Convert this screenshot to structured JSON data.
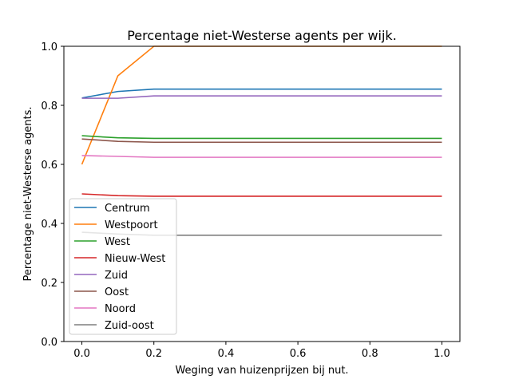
{
  "chart_data": {
    "type": "line",
    "title": "Percentage niet-Westerse agents per wijk.",
    "xlabel": "Weging van huizenprijzen bij nut.",
    "ylabel": "Percentage niet-Westerse agents.",
    "xlim": [
      -0.05,
      1.05
    ],
    "ylim": [
      0.0,
      1.0
    ],
    "x": [
      0.0,
      0.1,
      0.2,
      0.3,
      0.4,
      0.5,
      0.6,
      0.7,
      0.8,
      0.9,
      1.0
    ],
    "xticks": [
      "0.0",
      "0.2",
      "0.4",
      "0.6",
      "0.8",
      "1.0"
    ],
    "yticks": [
      "0.0",
      "0.2",
      "0.4",
      "0.6",
      "0.8",
      "1.0"
    ],
    "grid": false,
    "legend_position": "bottom-left",
    "series": [
      {
        "name": "Centrum",
        "color": "#1f77b4",
        "values": [
          0.825,
          0.847,
          0.855,
          0.855,
          0.855,
          0.855,
          0.855,
          0.855,
          0.855,
          0.855,
          0.855
        ]
      },
      {
        "name": "Westpoort",
        "color": "#ff7f0e",
        "values": [
          0.6,
          0.9,
          1.0,
          1.0,
          1.0,
          1.0,
          1.0,
          1.0,
          1.0,
          1.0,
          1.0
        ]
      },
      {
        "name": "West",
        "color": "#2ca02c",
        "values": [
          0.697,
          0.69,
          0.688,
          0.688,
          0.688,
          0.688,
          0.688,
          0.688,
          0.688,
          0.688,
          0.688
        ]
      },
      {
        "name": "Nieuw-West",
        "color": "#d62728",
        "values": [
          0.5,
          0.494,
          0.492,
          0.492,
          0.492,
          0.492,
          0.492,
          0.492,
          0.492,
          0.492,
          0.492
        ]
      },
      {
        "name": "Zuid",
        "color": "#9467bd",
        "values": [
          0.824,
          0.824,
          0.832,
          0.832,
          0.832,
          0.832,
          0.832,
          0.832,
          0.832,
          0.832,
          0.832
        ]
      },
      {
        "name": "Oost",
        "color": "#8c564b",
        "values": [
          0.686,
          0.678,
          0.675,
          0.675,
          0.675,
          0.675,
          0.675,
          0.675,
          0.675,
          0.675,
          0.675
        ]
      },
      {
        "name": "Noord",
        "color": "#e377c2",
        "values": [
          0.63,
          0.627,
          0.624,
          0.624,
          0.624,
          0.624,
          0.624,
          0.624,
          0.624,
          0.624,
          0.624
        ]
      },
      {
        "name": "Zuid-oost",
        "color": "#7f7f7f",
        "values": [
          0.37,
          0.364,
          0.36,
          0.36,
          0.36,
          0.36,
          0.36,
          0.36,
          0.36,
          0.36,
          0.36
        ]
      }
    ]
  }
}
